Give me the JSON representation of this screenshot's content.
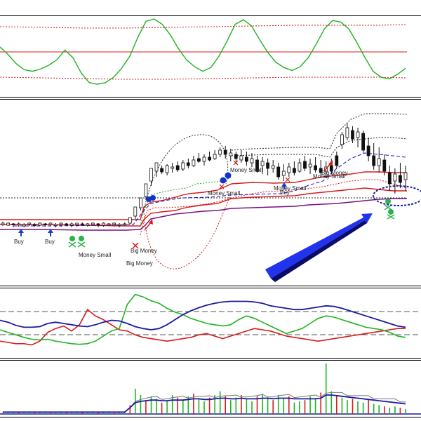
{
  "colors": {
    "green": "#1fb31f",
    "red": "#d81b1b",
    "purple": "#7a1080",
    "blue": "#1111cc",
    "darkblue": "#1a1aa0",
    "gray": "#777777",
    "black": "#111111",
    "background": "#ffffff",
    "arrow": "#2233ee",
    "skull": "#2bb24c"
  },
  "panel_oscillator": {
    "series_name": "",
    "values": [
      62,
      52,
      40,
      32,
      30,
      33,
      38,
      45,
      58,
      48,
      28,
      15,
      13,
      15,
      22,
      34,
      50,
      75,
      96,
      99,
      92,
      78,
      60,
      45,
      36,
      30,
      35,
      50,
      70,
      92,
      98,
      90,
      72,
      55,
      42,
      35,
      31,
      36,
      48,
      66,
      86,
      97,
      95,
      86,
      68,
      48,
      30,
      22,
      20,
      26,
      34
    ]
  },
  "panel_main": {
    "candles": [
      [
        316,
        322,
        320,
        318
      ],
      [
        317,
        322,
        321,
        318
      ],
      [
        318,
        324,
        319,
        320
      ],
      [
        317,
        323,
        320,
        319
      ],
      [
        318,
        324,
        322,
        320
      ],
      [
        317,
        322,
        319,
        318
      ],
      [
        318,
        323,
        320,
        321
      ],
      [
        317,
        322,
        321,
        318
      ],
      [
        318,
        323,
        319,
        320
      ],
      [
        317,
        322,
        320,
        318
      ],
      [
        318,
        324,
        321,
        320
      ],
      [
        317,
        323,
        320,
        318
      ],
      [
        318,
        322,
        319,
        320
      ],
      [
        317,
        324,
        321,
        319
      ],
      [
        318,
        323,
        320,
        318
      ],
      [
        317,
        322,
        319,
        320
      ],
      [
        318,
        323,
        321,
        319
      ],
      [
        317,
        322,
        320,
        318
      ],
      [
        318,
        324,
        319,
        320
      ],
      [
        317,
        323,
        321,
        318
      ],
      [
        318,
        322,
        320,
        319
      ],
      [
        317,
        323,
        319,
        318
      ],
      [
        318,
        324,
        321,
        320
      ],
      [
        317,
        322,
        320,
        319
      ],
      [
        316,
        320,
        318,
        310
      ],
      [
        306,
        312,
        308,
        295
      ],
      [
        292,
        300,
        296,
        282
      ],
      [
        272,
        285,
        280,
        262
      ],
      [
        250,
        265,
        258,
        240
      ],
      [
        238,
        252,
        244,
        232
      ],
      [
        236,
        248,
        240,
        245
      ],
      [
        234,
        250,
        246,
        236
      ],
      [
        232,
        246,
        240,
        238
      ],
      [
        230,
        245,
        236,
        242
      ],
      [
        228,
        244,
        241,
        232
      ],
      [
        226,
        240,
        232,
        236
      ],
      [
        222,
        238,
        236,
        228
      ],
      [
        218,
        232,
        226,
        230
      ],
      [
        220,
        236,
        230,
        224
      ],
      [
        216,
        230,
        224,
        228
      ],
      [
        214,
        228,
        226,
        220
      ],
      [
        210,
        224,
        220,
        214
      ],
      [
        208,
        226,
        214,
        220
      ],
      [
        212,
        230,
        222,
        218
      ],
      [
        216,
        234,
        220,
        226
      ],
      [
        214,
        232,
        228,
        222
      ],
      [
        216,
        236,
        224,
        230
      ],
      [
        218,
        238,
        232,
        226
      ],
      [
        222,
        246,
        228,
        244
      ],
      [
        224,
        248,
        236,
        230
      ],
      [
        226,
        250,
        232,
        240
      ],
      [
        228,
        246,
        240,
        236
      ],
      [
        232,
        256,
        238,
        252
      ],
      [
        234,
        258,
        250,
        244
      ],
      [
        232,
        252,
        246,
        238
      ],
      [
        230,
        250,
        240,
        246
      ],
      [
        226,
        246,
        244,
        232
      ],
      [
        222,
        244,
        230,
        240
      ],
      [
        226,
        248,
        238,
        234
      ],
      [
        224,
        246,
        236,
        242
      ],
      [
        228,
        250,
        240,
        246
      ],
      [
        230,
        254,
        244,
        238
      ],
      [
        226,
        248,
        236,
        244
      ],
      [
        216,
        240,
        222,
        236
      ],
      [
        188,
        212,
        206,
        192
      ],
      [
        176,
        200,
        196,
        182
      ],
      [
        180,
        204,
        186,
        198
      ],
      [
        182,
        210,
        196,
        188
      ],
      [
        186,
        218,
        190,
        214
      ],
      [
        196,
        230,
        208,
        222
      ],
      [
        204,
        242,
        222,
        236
      ],
      [
        210,
        246,
        236,
        226
      ],
      [
        220,
        250,
        228,
        244
      ],
      [
        236,
        272,
        246,
        262
      ],
      [
        240,
        276,
        258,
        248
      ],
      [
        232,
        268,
        250,
        260
      ],
      [
        236,
        272,
        256,
        246
      ]
    ],
    "annotations": [
      {
        "text": "Buy"
      },
      {
        "text": "Buy"
      },
      {
        "text": "Money Small"
      },
      {
        "text": "Big Money"
      },
      {
        "text": "Big Money"
      },
      {
        "text": "Money Small"
      },
      {
        "text": "Money Small"
      },
      {
        "text": "Money Small"
      },
      {
        "text": "Buy"
      },
      {
        "text": "Big Money"
      },
      {
        "text": "Money Small"
      }
    ]
  },
  "panel_stochastic": {
    "blue": [
      55,
      52,
      47,
      44,
      44,
      45,
      50,
      52,
      50,
      48,
      46,
      45,
      48,
      52,
      55,
      54,
      50,
      45,
      42,
      40,
      42,
      48,
      56,
      64,
      70,
      75,
      79,
      82,
      84,
      85,
      85,
      85,
      84,
      82,
      78,
      76,
      74,
      72,
      72,
      74,
      76,
      78,
      77,
      74,
      70,
      66,
      62,
      58,
      54,
      50,
      46,
      44
    ],
    "green": [
      40,
      36,
      32,
      28,
      25,
      24,
      25,
      22,
      20,
      18,
      17,
      18,
      22,
      30,
      38,
      42,
      80,
      96,
      92,
      86,
      82,
      74,
      68,
      64,
      58,
      54,
      50,
      48,
      46,
      48,
      56,
      62,
      58,
      52,
      46,
      40,
      34,
      38,
      42,
      50,
      58,
      62,
      60,
      56,
      52,
      48,
      44,
      42,
      40,
      36,
      30,
      28
    ],
    "red": [
      22,
      20,
      18,
      18,
      16,
      22,
      36,
      42,
      46,
      38,
      48,
      72,
      62,
      56,
      48,
      40,
      38,
      32,
      28,
      26,
      24,
      22,
      24,
      26,
      28,
      32,
      34,
      30,
      26,
      30,
      34,
      38,
      42,
      40,
      38,
      34,
      30,
      28,
      26,
      24,
      22,
      24,
      26,
      28,
      30,
      32,
      34,
      36,
      38,
      40,
      42,
      42
    ]
  },
  "panel_volume": {
    "bars": [
      2,
      2,
      2,
      2,
      3,
      2,
      2,
      3,
      2,
      2,
      2,
      3,
      2,
      2,
      2,
      3,
      2,
      2,
      3,
      2,
      2,
      2,
      3,
      2,
      14,
      40,
      30,
      22,
      28,
      24,
      18,
      20,
      30,
      26,
      22,
      28,
      32,
      24,
      20,
      26,
      30,
      36,
      28,
      22,
      26,
      30,
      24,
      20,
      28,
      32,
      26,
      22,
      30,
      24,
      28,
      18,
      20,
      22,
      28,
      24,
      34,
      80,
      36,
      30,
      26,
      22,
      24,
      20,
      18,
      22,
      16,
      14,
      12,
      10,
      12,
      10,
      8
    ],
    "avg_line": [
      3,
      3,
      3,
      3,
      3,
      3,
      3,
      3,
      3,
      3,
      3,
      3,
      3,
      3,
      3,
      3,
      3,
      3,
      3,
      3,
      3,
      3,
      3,
      3,
      10,
      18,
      20,
      21,
      22,
      22,
      21,
      21,
      22,
      22,
      22,
      23,
      24,
      24,
      23,
      23,
      24,
      25,
      25,
      24,
      24,
      25,
      24,
      24,
      24,
      25,
      25,
      24,
      25,
      25,
      25,
      24,
      24,
      24,
      24,
      24,
      25,
      30,
      30,
      29,
      28,
      27,
      26,
      25,
      24,
      23,
      22,
      21,
      20,
      19,
      18,
      17,
      16
    ]
  }
}
